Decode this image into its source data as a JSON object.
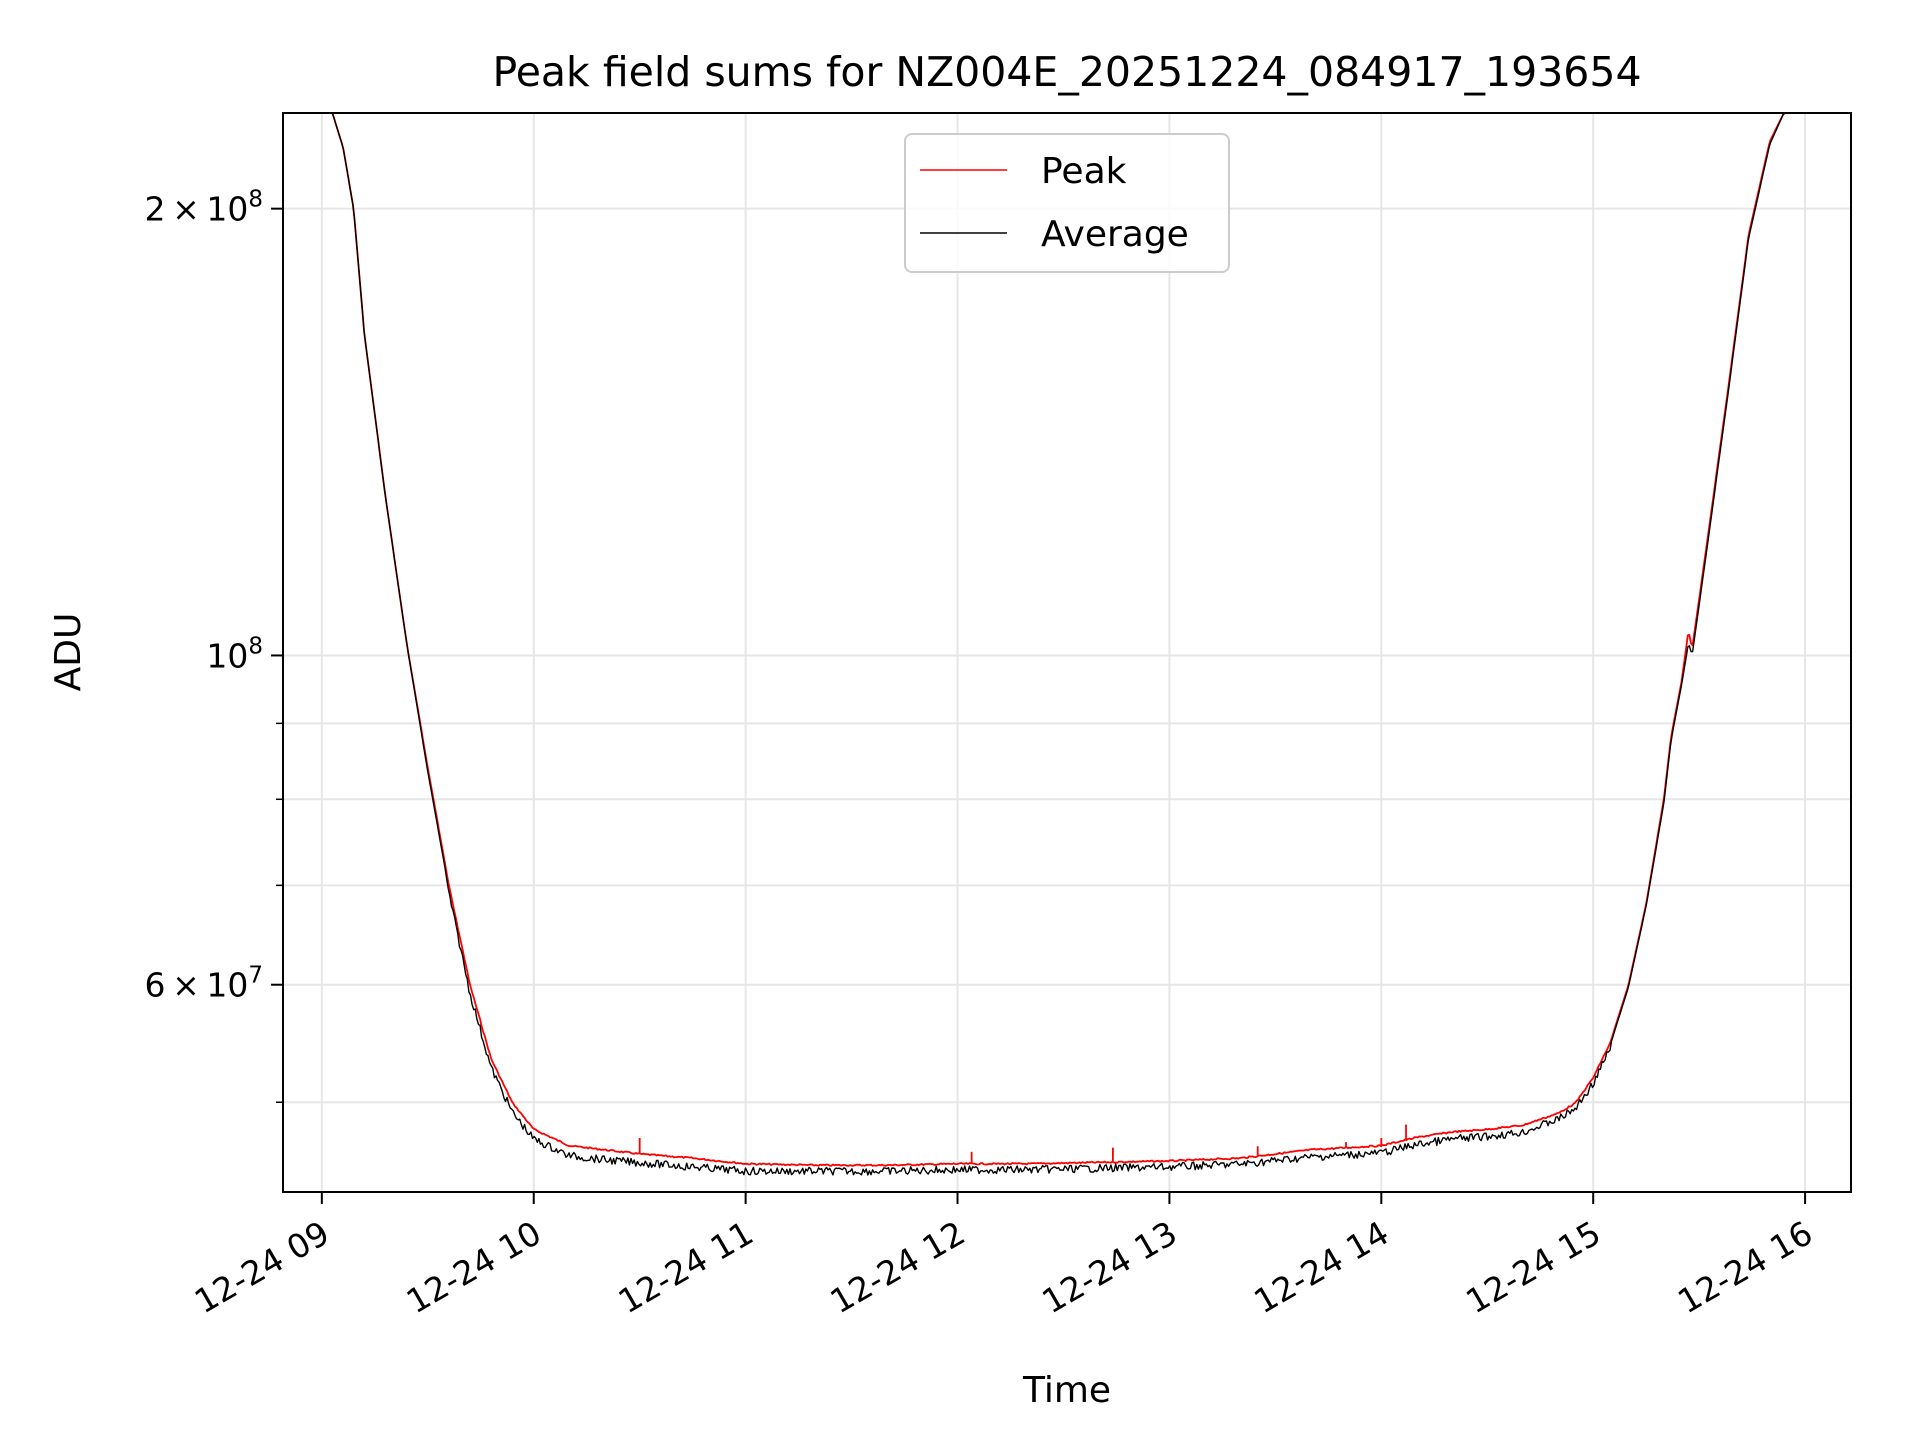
{
  "chart_data": {
    "type": "line",
    "title": "Peak field sums for NZ004E_20251224_084917_193654",
    "xlabel": "Time",
    "ylabel": "ADU",
    "y_scale": "log",
    "xlim": [
      "2025-12-24 08:49",
      "2025-12-24 16:13"
    ],
    "ylim": [
      43500000,
      232000000
    ],
    "grid": true,
    "legend_position": "upper center",
    "x_ticks": [
      {
        "t": "2025-12-24 09:00",
        "label": "12-24 09"
      },
      {
        "t": "2025-12-24 10:00",
        "label": "12-24 10"
      },
      {
        "t": "2025-12-24 11:00",
        "label": "12-24 11"
      },
      {
        "t": "2025-12-24 12:00",
        "label": "12-24 12"
      },
      {
        "t": "2025-12-24 13:00",
        "label": "12-24 13"
      },
      {
        "t": "2025-12-24 14:00",
        "label": "12-24 14"
      },
      {
        "t": "2025-12-24 15:00",
        "label": "12-24 15"
      },
      {
        "t": "2025-12-24 16:00",
        "label": "12-24 16"
      }
    ],
    "y_major_ticks": [
      {
        "value": 200000000,
        "mantissa": "2",
        "exponent": "8"
      },
      {
        "value": 100000000,
        "mantissa": "",
        "exponent": "8"
      },
      {
        "value": 60000000,
        "mantissa": "6",
        "exponent": "7"
      }
    ],
    "y_minor_gridlines": [
      50000000,
      70000000,
      80000000,
      90000000
    ],
    "series": [
      {
        "name": "Peak",
        "color": "#ff0000",
        "points": [
          [
            "2025-12-24 08:49",
            232000000
          ],
          [
            "2025-12-24 09:03",
            232000000
          ],
          [
            "2025-12-24 09:06",
            220000000
          ],
          [
            "2025-12-24 09:09",
            200000000
          ],
          [
            "2025-12-24 09:12",
            165000000
          ],
          [
            "2025-12-24 09:18",
            128000000
          ],
          [
            "2025-12-24 09:24",
            102000000
          ],
          [
            "2025-12-24 09:30",
            84000000
          ],
          [
            "2025-12-24 09:36",
            70000000
          ],
          [
            "2025-12-24 09:42",
            60000000
          ],
          [
            "2025-12-24 09:48",
            53500000
          ],
          [
            "2025-12-24 09:54",
            50000000
          ],
          [
            "2025-12-24 10:00",
            48000000
          ],
          [
            "2025-12-24 10:10",
            46800000
          ],
          [
            "2025-12-24 10:20",
            46500000
          ],
          [
            "2025-12-24 10:30",
            46200000
          ],
          [
            "2025-12-24 10:45",
            45900000
          ],
          [
            "2025-12-24 11:00",
            45500000
          ],
          [
            "2025-12-24 11:20",
            45400000
          ],
          [
            "2025-12-24 11:40",
            45400000
          ],
          [
            "2025-12-24 12:00",
            45500000
          ],
          [
            "2025-12-24 12:20",
            45500000
          ],
          [
            "2025-12-24 12:40",
            45600000
          ],
          [
            "2025-12-24 13:00",
            45700000
          ],
          [
            "2025-12-24 13:20",
            45900000
          ],
          [
            "2025-12-24 13:40",
            46500000
          ],
          [
            "2025-12-24 14:00",
            46800000
          ],
          [
            "2025-12-24 14:10",
            47400000
          ],
          [
            "2025-12-24 14:20",
            47800000
          ],
          [
            "2025-12-24 14:30",
            48000000
          ],
          [
            "2025-12-24 14:40",
            48300000
          ],
          [
            "2025-12-24 14:50",
            49200000
          ],
          [
            "2025-12-24 14:55",
            50000000
          ],
          [
            "2025-12-24 15:00",
            52000000
          ],
          [
            "2025-12-24 15:05",
            55000000
          ],
          [
            "2025-12-24 15:10",
            60000000
          ],
          [
            "2025-12-24 15:15",
            68000000
          ],
          [
            "2025-12-24 15:20",
            80000000
          ],
          [
            "2025-12-24 15:22",
            88000000
          ],
          [
            "2025-12-24 15:25",
            96000000
          ],
          [
            "2025-12-24 15:27",
            104000000
          ],
          [
            "2025-12-24 15:28",
            101000000
          ],
          [
            "2025-12-24 15:32",
            118000000
          ],
          [
            "2025-12-24 15:38",
            150000000
          ],
          [
            "2025-12-24 15:44",
            192000000
          ],
          [
            "2025-12-24 15:50",
            222000000
          ],
          [
            "2025-12-24 15:54",
            232000000
          ],
          [
            "2025-12-24 16:13",
            232000000
          ]
        ],
        "spikes": [
          [
            "2025-12-24 10:30",
            47300000
          ],
          [
            "2025-12-24 12:04",
            46300000
          ],
          [
            "2025-12-24 12:44",
            46600000
          ],
          [
            "2025-12-24 13:25",
            46700000
          ],
          [
            "2025-12-24 13:50",
            47000000
          ],
          [
            "2025-12-24 14:00",
            47300000
          ],
          [
            "2025-12-24 14:07",
            48300000
          ]
        ]
      },
      {
        "name": "Average",
        "color": "#000000",
        "points": [
          [
            "2025-12-24 08:49",
            232000000
          ],
          [
            "2025-12-24 09:03",
            232000000
          ],
          [
            "2025-12-24 09:06",
            220000000
          ],
          [
            "2025-12-24 09:09",
            200000000
          ],
          [
            "2025-12-24 09:12",
            165000000
          ],
          [
            "2025-12-24 09:18",
            128000000
          ],
          [
            "2025-12-24 09:24",
            102000000
          ],
          [
            "2025-12-24 09:30",
            83500000
          ],
          [
            "2025-12-24 09:36",
            69500000
          ],
          [
            "2025-12-24 09:42",
            59500000
          ],
          [
            "2025-12-24 09:48",
            53000000
          ],
          [
            "2025-12-24 09:54",
            49500000
          ],
          [
            "2025-12-24 10:00",
            47500000
          ],
          [
            "2025-12-24 10:10",
            46300000
          ],
          [
            "2025-12-24 10:20",
            46000000
          ],
          [
            "2025-12-24 10:30",
            45800000
          ],
          [
            "2025-12-24 10:45",
            45500000
          ],
          [
            "2025-12-24 11:00",
            45200000
          ],
          [
            "2025-12-24 11:20",
            45200000
          ],
          [
            "2025-12-24 11:40",
            45200000
          ],
          [
            "2025-12-24 12:00",
            45300000
          ],
          [
            "2025-12-24 12:20",
            45300000
          ],
          [
            "2025-12-24 12:40",
            45400000
          ],
          [
            "2025-12-24 13:00",
            45500000
          ],
          [
            "2025-12-24 13:20",
            45700000
          ],
          [
            "2025-12-24 13:40",
            46200000
          ],
          [
            "2025-12-24 14:00",
            46500000
          ],
          [
            "2025-12-24 14:10",
            47100000
          ],
          [
            "2025-12-24 14:20",
            47500000
          ],
          [
            "2025-12-24 14:30",
            47700000
          ],
          [
            "2025-12-24 14:40",
            48000000
          ],
          [
            "2025-12-24 14:50",
            49000000
          ],
          [
            "2025-12-24 14:55",
            49800000
          ],
          [
            "2025-12-24 15:00",
            51800000
          ],
          [
            "2025-12-24 15:05",
            54800000
          ],
          [
            "2025-12-24 15:10",
            59800000
          ],
          [
            "2025-12-24 15:15",
            67800000
          ],
          [
            "2025-12-24 15:20",
            79500000
          ],
          [
            "2025-12-24 15:22",
            87500000
          ],
          [
            "2025-12-24 15:25",
            95500000
          ],
          [
            "2025-12-24 15:27",
            102000000
          ],
          [
            "2025-12-24 15:28",
            100000000
          ],
          [
            "2025-12-24 15:32",
            117000000
          ],
          [
            "2025-12-24 15:38",
            149000000
          ],
          [
            "2025-12-24 15:44",
            191000000
          ],
          [
            "2025-12-24 15:50",
            221000000
          ],
          [
            "2025-12-24 15:54",
            232000000
          ],
          [
            "2025-12-24 16:13",
            232000000
          ]
        ]
      }
    ]
  }
}
